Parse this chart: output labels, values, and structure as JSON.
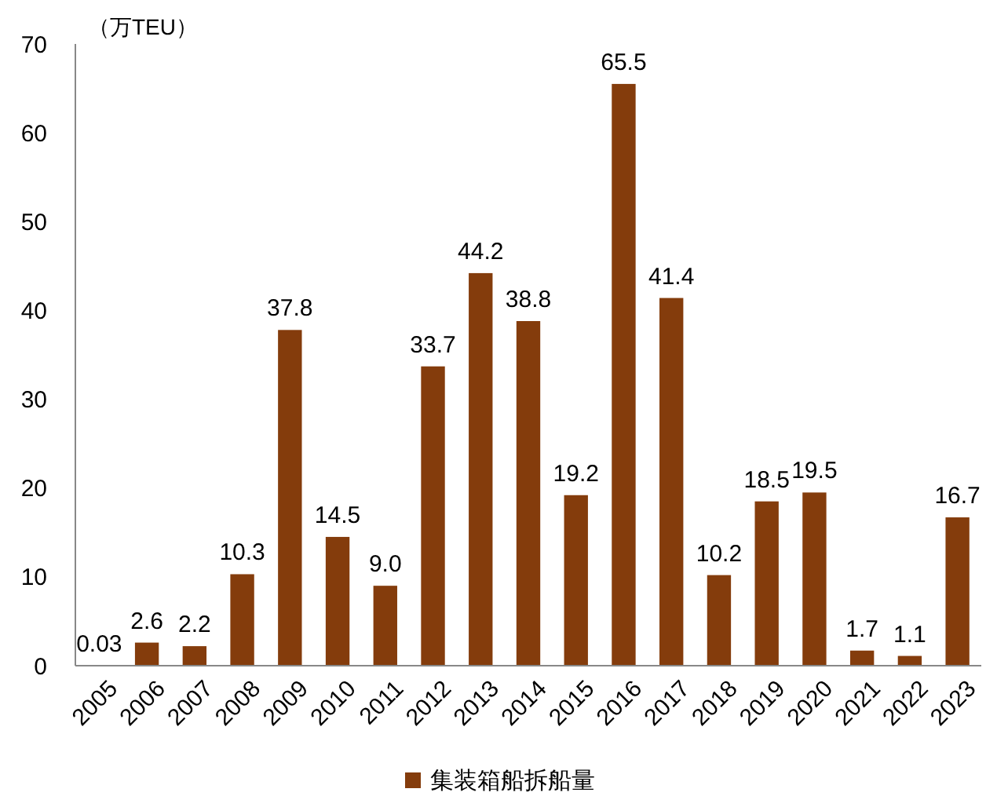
{
  "chart_data": {
    "type": "bar",
    "ylabel": "（万TEU）",
    "categories": [
      "2005",
      "2006",
      "2007",
      "2008",
      "2009",
      "2010",
      "2011",
      "2012",
      "2013",
      "2014",
      "2015",
      "2016",
      "2017",
      "2018",
      "2019",
      "2020",
      "2021",
      "2022",
      "2023"
    ],
    "series": [
      {
        "name": "集装箱船拆船量",
        "color": "#843c0c",
        "values": [
          0.03,
          2.6,
          2.2,
          10.3,
          37.8,
          14.5,
          9.0,
          33.7,
          44.2,
          38.8,
          19.2,
          65.5,
          41.4,
          10.2,
          18.5,
          19.5,
          1.7,
          1.1,
          16.7
        ],
        "value_labels": [
          "0.03",
          "2.6",
          "2.2",
          "10.3",
          "37.8",
          "14.5",
          "9.0",
          "33.7",
          "44.2",
          "38.8",
          "19.2",
          "65.5",
          "41.4",
          "10.2",
          "18.5",
          "19.5",
          "1.7",
          "1.1",
          "16.7"
        ]
      }
    ],
    "ylim": [
      0,
      70
    ],
    "yticks": [
      0,
      10,
      20,
      30,
      40,
      50,
      60,
      70
    ],
    "grid": false,
    "legend": "bottom"
  }
}
